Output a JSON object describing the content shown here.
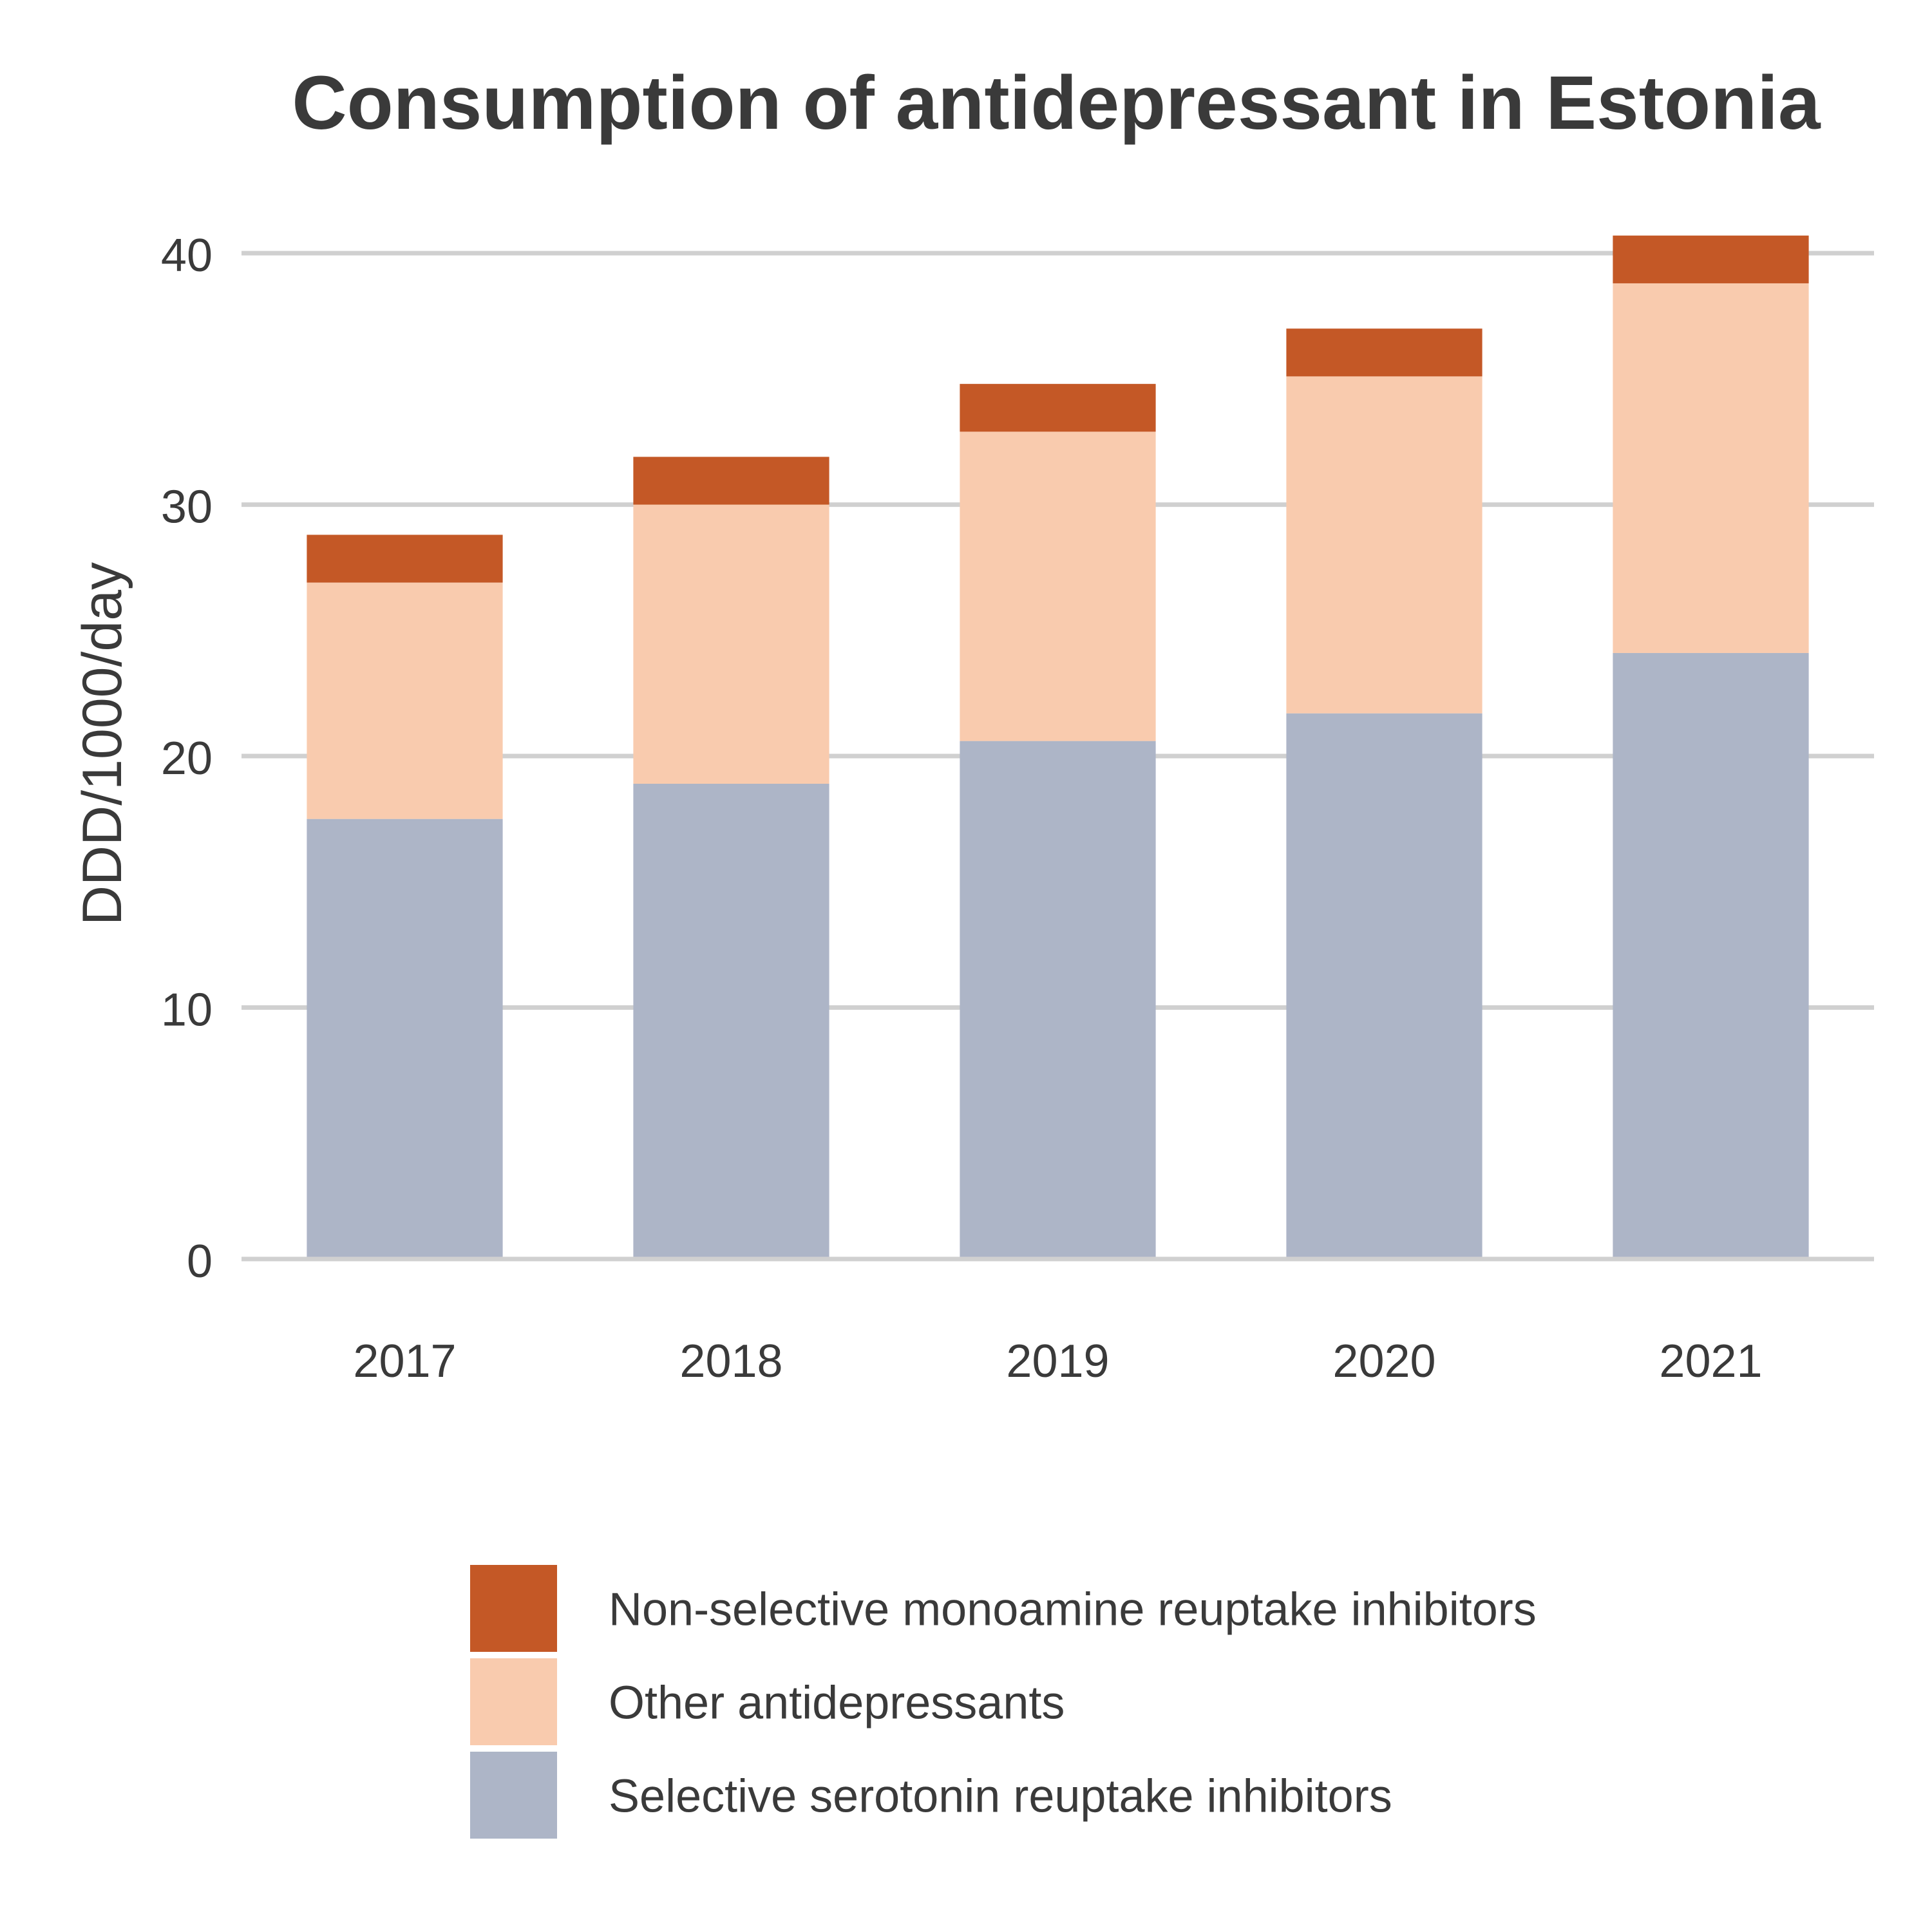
{
  "chart_data": {
    "type": "bar",
    "stacked": true,
    "title": "Consumption of antidepressant in Estonia",
    "xlabel": "",
    "ylabel": "DDD/1000/day",
    "categories": [
      "2017",
      "2018",
      "2019",
      "2020",
      "2021"
    ],
    "ylim": [
      0,
      42
    ],
    "yticks": [
      "0",
      "10",
      "20",
      "30",
      "40"
    ],
    "grid": true,
    "legend_position": "bottom",
    "series": [
      {
        "name": "Selective serotonin reuptake inhibitors",
        "color": "#adb5c7",
        "values": [
          17.5,
          18.9,
          20.6,
          21.7,
          24.1
        ]
      },
      {
        "name": "Other antidepressants",
        "color": "#f9cbae",
        "values": [
          9.4,
          11.1,
          12.3,
          13.4,
          14.7
        ]
      },
      {
        "name": "Non-selective monoamine reuptake inhibitors",
        "color": "#c45826",
        "values": [
          1.9,
          1.9,
          1.9,
          1.9,
          1.9
        ]
      }
    ]
  }
}
